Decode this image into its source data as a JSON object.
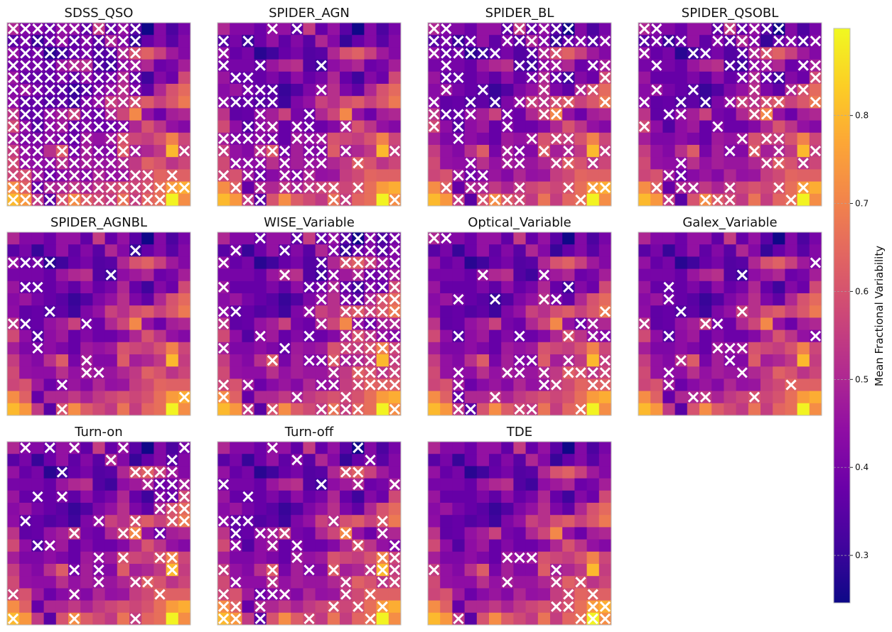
{
  "chart_data": {
    "type": "heatmap",
    "grid_size": [
      15,
      15
    ],
    "colormap": "plasma",
    "colorbar": {
      "label": "Mean Fractional Variability",
      "range": [
        0.246,
        0.899
      ],
      "ticks": [
        "0.3",
        "0.4",
        "0.5",
        "0.6",
        "0.7",
        "0.8"
      ]
    },
    "marker": {
      "symbol": "x",
      "color": "#ffffff"
    },
    "values": [
      [
        0.5,
        0.42,
        0.42,
        0.38,
        0.45,
        0.45,
        0.36,
        0.55,
        0.37,
        0.45,
        0.35,
        0.25,
        0.42,
        0.33,
        0.4
      ],
      [
        0.35,
        0.4,
        0.3,
        0.38,
        0.45,
        0.36,
        0.42,
        0.35,
        0.5,
        0.42,
        0.3,
        0.37,
        0.42,
        0.35,
        0.42
      ],
      [
        0.45,
        0.37,
        0.4,
        0.28,
        0.31,
        0.37,
        0.4,
        0.34,
        0.35,
        0.5,
        0.6,
        0.63,
        0.56,
        0.47,
        0.42
      ],
      [
        0.4,
        0.4,
        0.4,
        0.37,
        0.46,
        0.5,
        0.52,
        0.34,
        0.31,
        0.44,
        0.47,
        0.5,
        0.38,
        0.4,
        0.48
      ],
      [
        0.46,
        0.37,
        0.37,
        0.37,
        0.41,
        0.36,
        0.44,
        0.37,
        0.4,
        0.5,
        0.37,
        0.31,
        0.42,
        0.38,
        0.58
      ],
      [
        0.43,
        0.46,
        0.4,
        0.37,
        0.35,
        0.3,
        0.34,
        0.41,
        0.45,
        0.52,
        0.41,
        0.36,
        0.5,
        0.6,
        0.65
      ],
      [
        0.44,
        0.36,
        0.37,
        0.34,
        0.36,
        0.31,
        0.41,
        0.45,
        0.56,
        0.52,
        0.59,
        0.62,
        0.56,
        0.61,
        0.68
      ],
      [
        0.53,
        0.36,
        0.37,
        0.45,
        0.48,
        0.56,
        0.4,
        0.38,
        0.5,
        0.57,
        0.71,
        0.45,
        0.38,
        0.48,
        0.5
      ],
      [
        0.58,
        0.44,
        0.34,
        0.44,
        0.47,
        0.37,
        0.42,
        0.38,
        0.38,
        0.42,
        0.5,
        0.6,
        0.53,
        0.45,
        0.42
      ],
      [
        0.48,
        0.41,
        0.41,
        0.44,
        0.41,
        0.37,
        0.47,
        0.45,
        0.47,
        0.6,
        0.57,
        0.55,
        0.6,
        0.7,
        0.57
      ],
      [
        0.55,
        0.45,
        0.42,
        0.52,
        0.62,
        0.4,
        0.48,
        0.42,
        0.42,
        0.62,
        0.48,
        0.5,
        0.54,
        0.8,
        0.55
      ],
      [
        0.58,
        0.45,
        0.44,
        0.44,
        0.52,
        0.45,
        0.48,
        0.46,
        0.46,
        0.5,
        0.54,
        0.63,
        0.6,
        0.53,
        0.57
      ],
      [
        0.57,
        0.6,
        0.47,
        0.38,
        0.43,
        0.46,
        0.42,
        0.5,
        0.45,
        0.46,
        0.55,
        0.58,
        0.64,
        0.63,
        0.63
      ],
      [
        0.72,
        0.63,
        0.37,
        0.5,
        0.5,
        0.54,
        0.49,
        0.54,
        0.57,
        0.6,
        0.57,
        0.6,
        0.66,
        0.75,
        0.78
      ],
      [
        0.8,
        0.74,
        0.54,
        0.35,
        0.6,
        0.72,
        0.62,
        0.58,
        0.54,
        0.67,
        0.55,
        0.64,
        0.66,
        0.89,
        0.72
      ]
    ],
    "panels": [
      {
        "title": "SDSS_QSO",
        "markers": [
          "xxxxxxxxxxx....",
          "xxxxxxxxxxx....",
          "xxxxxxxxxxx....",
          "xxxxxxxxxxx....",
          "xxxxxxxxxxx....",
          "xxxxxxxxxxx....",
          "xxxxxxxxxxx....",
          "xxxxxxxxx......",
          "xxxxxxxxxx.....",
          "xxxxxxx.xx.....",
          "xxx.xxxxxxx...x",
          "xxxxxxxxxx.....",
          "xxxxxxxxxxxx.x.",
          "xxxxxxxxxxxxxxx",
          "xxxxxxxxxxxxx.."
        ]
      },
      {
        "title": "SPIDER_AGN",
        "markers": [
          "....x.x........",
          "x.x............",
          "x..............",
          "x..x....x......",
          ".xx............",
          "..xxx...x......",
          "xxxxx..........",
          "...x...x.......",
          "..xxx.xx..x....",
          "xxxxx.xxx......",
          "x..xxx.xx.x...x",
          ".xxx.x.xx..x...",
          "x.xx.xxx.......",
          ".x.x.xxxxx.x...",
          "..xx.....xx...x"
        ]
      },
      {
        "title": "SPIDER_BL",
        "markers": [
          "xx....xxxxxx...",
          "xxxx..xxxxxxxxx",
          "xxxxxx..xxx....",
          ".x.....xxxx..xx",
          ".xx.....xxxx..x",
          ".x..x....x..xx.",
          "x..x.x.xxxxx..x",
          "xxxx..x..xx....",
          "x.x...x........",
          "..x.....x.xx...",
          "......xx.x.x..x",
          "...x..xx..xx.x.",
          "..xxx..........",
          ".x.xx..x...x.xx",
          "..x.xxxx....x.."
        ]
      },
      {
        "title": "SPIDER_QSOBL",
        "markers": [
          "xx....xxxxxx...",
          "xxxx..xxxx.xxxx",
          "x...xx..xxx....",
          ".x.....xxxx..xx",
          "........xxxx..x",
          ".x..x....x..xx.",
          "x..x.x.xxxxx..x",
          "..xx.....xx....",
          "x.....x........",
          "........x.xx...",
          ".......x.x.x..x",
          "...x......xx.x.",
          "..xx...........",
          ".x.xx..x...x.x.",
          "..x..xxx....x.."
        ]
      },
      {
        "title": "SPIDER_AGNBL",
        "markers": [
          "...............",
          "..........x....",
          "xxxx...........",
          "........x......",
          ".xx............",
          "...............",
          "...x...........",
          "xx....x........",
          "..x............",
          "..x............",
          "......x........",
          "......xx.......",
          "....x..........",
          "..............x",
          "....x.........."
        ]
      },
      {
        "title": "WISE_Variable",
        "markers": [
          "...x..x.xxxxxxx",
          ".x...x...xxxxxx",
          "x.......x.xxxxx",
          ".....x..xx.xxxx",
          "x......xxxxxxxx",
          "........x.xxxxx",
          "xx.....x..xxxxx",
          "x.......x..xxxx",
          "...x...x..xxxxx",
          "x....x....xxxxx",
          "....x..xxxxxx.x",
          ".........x.xxxx",
          "x.x.....xx.xxxx",
          "x.....x...x....",
          "..x.x...xxxx..x"
        ]
      },
      {
        "title": "Optical_Variable",
        "markers": [
          "xx.............",
          "...............",
          "...............",
          "....x....x.....",
          "...........x...",
          "..x..x...xx....",
          "..............x",
          "............xx.",
          "..x....x...x.xx",
          "...............",
          ".......xx..x..x",
          "..x...xx.x.xxxx",
          "..x......xx..xx",
          "..x..x.........",
          "..xx...xx...x.."
        ]
      },
      {
        "title": "Galex_Variable",
        "markers": [
          "...............",
          "...............",
          "..............x",
          "........x......",
          "..x............",
          "..x............",
          "...x....x......",
          "x....xx........",
          "..x...........x",
          "......xxx......",
          "...x...x.......",
          "..x.....x......",
          "..x.........x..",
          "....xx...x.....",
          "..............."
        ]
      },
      {
        "title": "Turn-on",
        "markers": [
          ".x.x.x...x....x",
          "........x....x.",
          "....x.....xxxx.",
          "...........xxxx",
          "..x.x.......xxx",
          "............xxx",
          ".x.....x..x..xx",
          ".....x...xx.x..",
          "..xx...........",
          ".......x.x..xx.",
          ".....x.x.....x.",
          ".......x..xx...",
          "x....x......x..",
          "...............",
          "x....x....x...."
        ]
      },
      {
        "title": "Turn-off",
        "markers": [
          "....x......x...",
          "......x.....x..",
          "..........xx...",
          "x.......x..x..x",
          "..x............",
          "...............",
          "xxx......x...x.",
          ".x.xxx....x..x.",
          ".x..x.x....x..x",
          "......x......xx",
          "x...x..x.x..xxx",
          ".x..x.....x..xx",
          "x..xxx....x.x..",
          "xx.x.....x.x.x.",
          "xx.x...x....x.."
        ]
      },
      {
        "title": "TDE",
        "markers": [
          "...............",
          "...............",
          "...............",
          "...............",
          "...............",
          "...............",
          "...............",
          "...............",
          "...............",
          "......xxx......",
          "x.........x....",
          "......x...x.x..",
          "...........x.x.",
          "..........xx.xx",
          "..x.........xxx"
        ]
      }
    ]
  }
}
